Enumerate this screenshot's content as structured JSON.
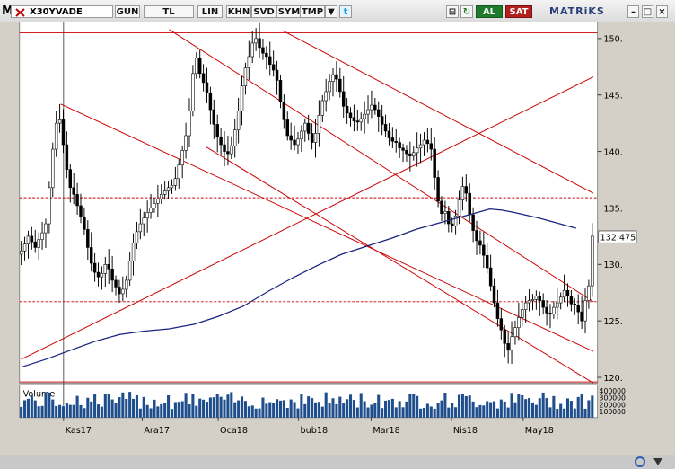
{
  "toolbar": {
    "logo": "M",
    "symbol": "X30YVADE",
    "buttons": [
      "GUN",
      "TL",
      "LIN",
      "KHN",
      "SVD",
      "SYM",
      "TMP"
    ],
    "al": "AL",
    "sat": "SAT",
    "brand": "MATRiKS"
  },
  "colors": {
    "candle": "#000000",
    "trend": "#cc0000",
    "ma": "#1a237e",
    "volume": "#1f4e8c",
    "background": "#ffffff"
  },
  "chart_data": {
    "type": "line",
    "title": "",
    "xlabel": "",
    "ylabel": "",
    "y_ticks": [
      150,
      145,
      140,
      135,
      130,
      125,
      120
    ],
    "x_ticks": [
      "Kas17",
      "Ara17",
      "Oca18",
      "bub18",
      "Mar18",
      "Nis18",
      "May18"
    ],
    "last_value": "132.475",
    "ylim": [
      119.5,
      151.5
    ],
    "volume_label": "Volume",
    "volume_ticks": [
      "400000",
      "300000",
      "200000",
      "100000"
    ],
    "horizontal_levels": [
      150.5,
      135.9,
      126.7,
      119.6
    ],
    "moving_average": [
      [
        0,
        120.9
      ],
      [
        10,
        121.6
      ],
      [
        20,
        122.4
      ],
      [
        30,
        123.2
      ],
      [
        40,
        123.8
      ],
      [
        50,
        124.1
      ],
      [
        60,
        124.3
      ],
      [
        70,
        124.7
      ],
      [
        80,
        125.4
      ],
      [
        90,
        126.3
      ],
      [
        100,
        127.6
      ],
      [
        110,
        128.8
      ],
      [
        120,
        129.9
      ],
      [
        130,
        130.9
      ],
      [
        140,
        131.6
      ],
      [
        150,
        132.3
      ],
      [
        160,
        133.1
      ],
      [
        170,
        133.7
      ],
      [
        180,
        134.3
      ],
      [
        185,
        134.6
      ],
      [
        190,
        134.9
      ],
      [
        195,
        134.8
      ],
      [
        200,
        134.6
      ],
      [
        210,
        134.1
      ],
      [
        220,
        133.5
      ],
      [
        225,
        133.2
      ]
    ],
    "trendlines": [
      {
        "x1": 0,
        "y1": 121.6,
        "x2": 232,
        "y2": 146.6
      },
      {
        "x1": 16,
        "y1": 144.2,
        "x2": 232,
        "y2": 122.3
      },
      {
        "x1": 75,
        "y1": 140.4,
        "x2": 232,
        "y2": 119.5
      },
      {
        "x1": 106,
        "y1": 150.7,
        "x2": 232,
        "y2": 136.3
      },
      {
        "x1": 60,
        "y1": 150.8,
        "x2": 232,
        "y2": 126.7
      }
    ],
    "closes": [
      131.2,
      131.8,
      132.5,
      132.0,
      131.5,
      132.2,
      132.8,
      133.6,
      136.8,
      140.2,
      142.5,
      142.8,
      140.6,
      138.4,
      136.8,
      136.2,
      135.2,
      134.2,
      133.1,
      131.5,
      130.1,
      129.3,
      128.9,
      129.2,
      130.0,
      129.6,
      128.6,
      128.0,
      127.4,
      127.8,
      128.6,
      130.3,
      131.9,
      132.9,
      133.6,
      134.1,
      134.6,
      135.0,
      135.4,
      135.8,
      136.2,
      136.5,
      136.8,
      137.0,
      137.6,
      138.8,
      140.1,
      141.4,
      143.6,
      146.9,
      148.3,
      146.9,
      146.1,
      145.2,
      143.7,
      142.4,
      141.3,
      140.6,
      140.0,
      139.8,
      140.5,
      141.9,
      143.6,
      145.8,
      147.4,
      148.4,
      149.6,
      150.0,
      149.2,
      148.7,
      148.4,
      147.7,
      147.2,
      146.3,
      144.4,
      142.8,
      141.4,
      141.0,
      140.6,
      141.1,
      141.8,
      142.5,
      141.6,
      140.8,
      141.6,
      143.2,
      144.5,
      145.3,
      146.2,
      146.8,
      146.4,
      145.3,
      144.0,
      143.4,
      143.0,
      142.7,
      142.6,
      142.9,
      143.3,
      143.7,
      144.1,
      143.7,
      143.1,
      142.4,
      141.8,
      141.2,
      140.9,
      140.8,
      140.3,
      140.1,
      139.8,
      139.6,
      139.9,
      140.3,
      140.6,
      141.0,
      140.7,
      140.2,
      137.7,
      135.6,
      134.5,
      134.7,
      133.6,
      133.4,
      134.3,
      135.7,
      136.9,
      136.3,
      134.4,
      133.0,
      132.1,
      131.7,
      130.8,
      129.7,
      128.1,
      126.6,
      125.2,
      124.2,
      123.0,
      122.4,
      123.6,
      124.4,
      125.3,
      126.0,
      126.6,
      126.8,
      126.9,
      127.2,
      126.8,
      126.2,
      125.7,
      125.6,
      126.2,
      126.6,
      127.1,
      127.7,
      127.2,
      126.5,
      126.4,
      125.8,
      125.0,
      126.8,
      128.1,
      132.5
    ]
  }
}
